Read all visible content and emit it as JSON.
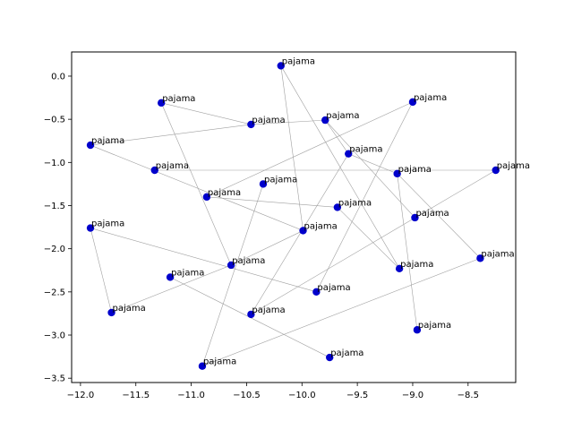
{
  "chart_data": {
    "type": "scatter",
    "title": "",
    "xlabel": "",
    "ylabel": "",
    "xlim": [
      -12.08,
      -8.07
    ],
    "ylim": [
      -3.55,
      0.28
    ],
    "x_ticks": [
      -12.0,
      -11.5,
      -11.0,
      -10.5,
      -10.0,
      -9.5,
      -9.0,
      -8.5
    ],
    "x_tick_labels": [
      "−12.0",
      "−11.5",
      "−11.0",
      "−10.5",
      "−10.0",
      "−9.5",
      "−9.0",
      "−8.5"
    ],
    "y_ticks": [
      0.0,
      -0.5,
      -1.0,
      -1.5,
      -2.0,
      -2.5,
      -3.0,
      -3.5
    ],
    "y_tick_labels": [
      "0.0",
      "−0.5",
      "−1.0",
      "−1.5",
      "−2.0",
      "−2.5",
      "−3.0",
      "−3.5"
    ],
    "grid": false,
    "marker_color": "#0000cc",
    "line_color": "#a0a0a0",
    "points": [
      {
        "label": "pajama",
        "x": -10.19,
        "y": 0.12
      },
      {
        "label": "pajama",
        "x": -11.27,
        "y": -0.31
      },
      {
        "label": "pajama",
        "x": -10.46,
        "y": -0.56
      },
      {
        "label": "pajama",
        "x": -9.79,
        "y": -0.51
      },
      {
        "label": "pajama",
        "x": -9.0,
        "y": -0.3
      },
      {
        "label": "pajama",
        "x": -11.91,
        "y": -0.8
      },
      {
        "label": "pajama",
        "x": -9.58,
        "y": -0.9
      },
      {
        "label": "pajama",
        "x": -11.33,
        "y": -1.09
      },
      {
        "label": "pajama",
        "x": -9.14,
        "y": -1.13
      },
      {
        "label": "pajama",
        "x": -8.25,
        "y": -1.09
      },
      {
        "label": "pajama",
        "x": -10.86,
        "y": -1.4
      },
      {
        "label": "pajama",
        "x": -10.35,
        "y": -1.25
      },
      {
        "label": "pajama",
        "x": -9.68,
        "y": -1.52
      },
      {
        "label": "pajama",
        "x": -8.98,
        "y": -1.64
      },
      {
        "label": "pajama",
        "x": -11.91,
        "y": -1.76
      },
      {
        "label": "pajama",
        "x": -9.99,
        "y": -1.79
      },
      {
        "label": "pajama",
        "x": -10.64,
        "y": -2.19
      },
      {
        "label": "pajama",
        "x": -8.39,
        "y": -2.11
      },
      {
        "label": "pajama",
        "x": -9.12,
        "y": -2.23
      },
      {
        "label": "pajama",
        "x": -11.19,
        "y": -2.33
      },
      {
        "label": "pajama",
        "x": -9.87,
        "y": -2.5
      },
      {
        "label": "pajama",
        "x": -11.72,
        "y": -2.74
      },
      {
        "label": "pajama",
        "x": -10.46,
        "y": -2.76
      },
      {
        "label": "pajama",
        "x": -8.96,
        "y": -2.94
      },
      {
        "label": "pajama",
        "x": -9.75,
        "y": -3.26
      },
      {
        "label": "pajama",
        "x": -10.9,
        "y": -3.36
      }
    ],
    "edges": [
      [
        0,
        15
      ],
      [
        0,
        18
      ],
      [
        1,
        2
      ],
      [
        1,
        16
      ],
      [
        2,
        3
      ],
      [
        2,
        5
      ],
      [
        3,
        13
      ],
      [
        4,
        10
      ],
      [
        4,
        20
      ],
      [
        5,
        15
      ],
      [
        6,
        22
      ],
      [
        6,
        8
      ],
      [
        7,
        9
      ],
      [
        8,
        23
      ],
      [
        8,
        17
      ],
      [
        9,
        22
      ],
      [
        10,
        12
      ],
      [
        11,
        25
      ],
      [
        12,
        18
      ],
      [
        14,
        21
      ],
      [
        14,
        20
      ],
      [
        16,
        15
      ],
      [
        16,
        21
      ],
      [
        17,
        25
      ],
      [
        19,
        24
      ],
      [
        3,
        6
      ]
    ]
  }
}
